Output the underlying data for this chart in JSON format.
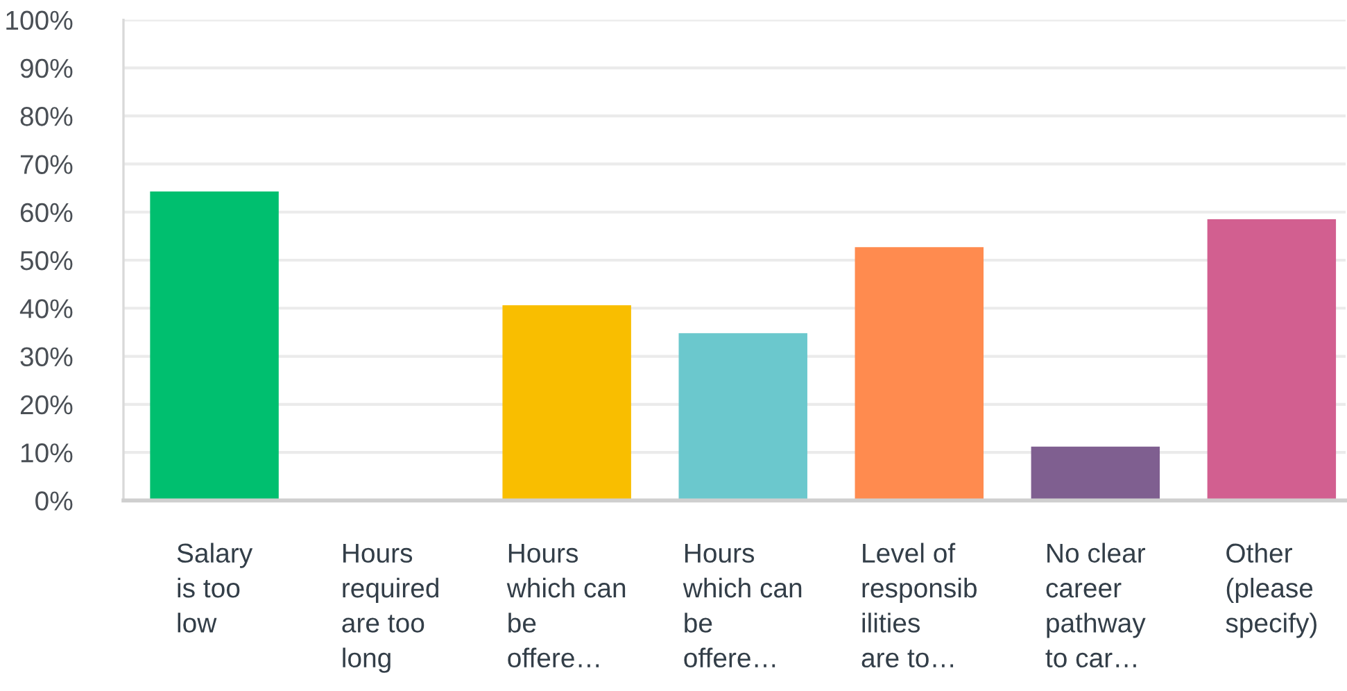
{
  "chart_data": {
    "type": "bar",
    "categories": [
      "Salary\nis too\nlow",
      "Hours\nrequired\nare too\nlong",
      "Hours\nwhich can\nbe\noffere…",
      "Hours\nwhich can\nbe\noffere…",
      "Level of\nresponsib\nilities\nare to…",
      "No clear\ncareer\npathway\nto car…",
      "Other\n(please\nspecify)"
    ],
    "values": [
      64.3,
      0,
      40.6,
      34.8,
      52.7,
      11.2,
      58.5
    ],
    "colors": [
      "#00bf6f",
      "#507cb6",
      "#f9be00",
      "#6bc8cd",
      "#ff8b4f",
      "#7f5f90",
      "#d25f90"
    ],
    "ylim": [
      0,
      100
    ],
    "yticks": [
      {
        "value": 0,
        "label": "0%"
      },
      {
        "value": 10,
        "label": "10%"
      },
      {
        "value": 20,
        "label": "20%"
      },
      {
        "value": 30,
        "label": "30%"
      },
      {
        "value": 40,
        "label": "40%"
      },
      {
        "value": 50,
        "label": "50%"
      },
      {
        "value": 60,
        "label": "60%"
      },
      {
        "value": 70,
        "label": "70%"
      },
      {
        "value": 80,
        "label": "80%"
      },
      {
        "value": 90,
        "label": "90%"
      },
      {
        "value": 100,
        "label": "100%"
      }
    ],
    "grid": "y"
  }
}
